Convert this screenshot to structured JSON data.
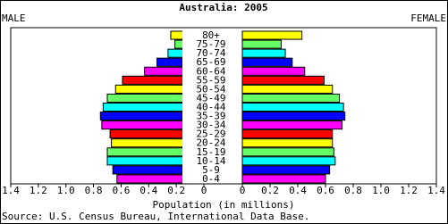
{
  "chart_data": {
    "type": "pyramid",
    "title": "Australia: 2005",
    "categories": [
      "80+",
      "75-79",
      "70-74",
      "65-69",
      "60-64",
      "55-59",
      "50-54",
      "45-49",
      "40-44",
      "35-39",
      "30-34",
      "25-29",
      "20-24",
      "15-19",
      "10-14",
      "5-9",
      "0-4"
    ],
    "colors": [
      "#ffff00",
      "#66ff66",
      "#00ffff",
      "#0000ff",
      "#ff00ff",
      "#ff0000",
      "#ffff00",
      "#66ff66",
      "#00ffff",
      "#0000ff",
      "#ff00ff",
      "#ff0000",
      "#ffff00",
      "#66ff66",
      "#00ffff",
      "#0000ff",
      "#ff00ff"
    ],
    "series": [
      {
        "name": "MALE",
        "values": [
          0.24,
          0.21,
          0.26,
          0.34,
          0.43,
          0.59,
          0.64,
          0.7,
          0.73,
          0.75,
          0.74,
          0.68,
          0.67,
          0.7,
          0.7,
          0.66,
          0.63
        ]
      },
      {
        "name": "FEMALE",
        "values": [
          0.43,
          0.28,
          0.31,
          0.36,
          0.45,
          0.59,
          0.65,
          0.7,
          0.73,
          0.74,
          0.72,
          0.65,
          0.65,
          0.66,
          0.67,
          0.63,
          0.6
        ]
      }
    ],
    "xlim": [
      0,
      1.4
    ],
    "xticks": [
      0,
      0.2,
      0.4,
      0.6,
      0.8,
      {
        "value": 1,
        "label": "1.0"
      },
      1.2,
      1.4
    ],
    "xlabel": "Population (in millions)",
    "source": "Source: U.S. Census Bureau, International Data Base."
  }
}
